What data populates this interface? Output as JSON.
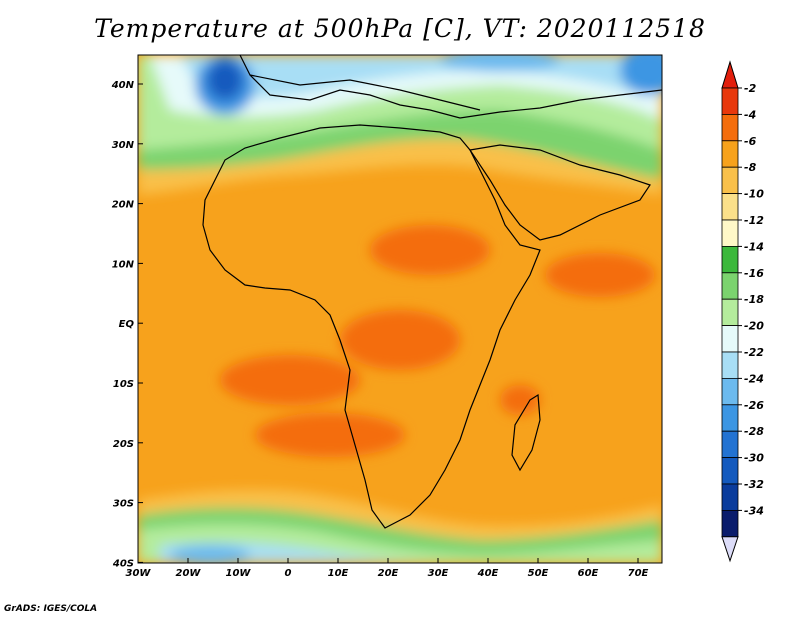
{
  "title": "Temperature at 500hPa [C], VT: 2020112518",
  "credit": "GrADS: IGES/COLA",
  "lat_labels": [
    "40N",
    "30N",
    "20N",
    "10N",
    "EQ",
    "10S",
    "20S",
    "30S",
    "40S"
  ],
  "lon_labels": [
    "30W",
    "20W",
    "10W",
    "0",
    "10E",
    "20E",
    "30E",
    "40E",
    "50E",
    "60E",
    "70E"
  ],
  "colorbar": {
    "labels": [
      "-2",
      "-4",
      "-6",
      "-8",
      "-10",
      "-12",
      "-14",
      "-16",
      "-18",
      "-20",
      "-22",
      "-24",
      "-26",
      "-28",
      "-30",
      "-32",
      "-34"
    ],
    "colors": [
      "#e8380c",
      "#f46d0c",
      "#f7a21c",
      "#f9c04a",
      "#fbe08a",
      "#fff8c8",
      "#3cb83c",
      "#7bd36e",
      "#b4ec9c",
      "#e6fafa",
      "#a8def5",
      "#6cbaee",
      "#3c96e3",
      "#2373d2",
      "#145abe",
      "#0a3c9c",
      "#0a1c6c"
    ],
    "over_color": "#e21e0c",
    "under_color": "#dcdcf8"
  },
  "colors": {
    "warm_core": "#f46d0c",
    "warm": "#f7a21c",
    "mid": "#f9c04a",
    "cool_green": "#7bd36e",
    "cold_blue": "#3c96e3",
    "coast": "#000000"
  }
}
